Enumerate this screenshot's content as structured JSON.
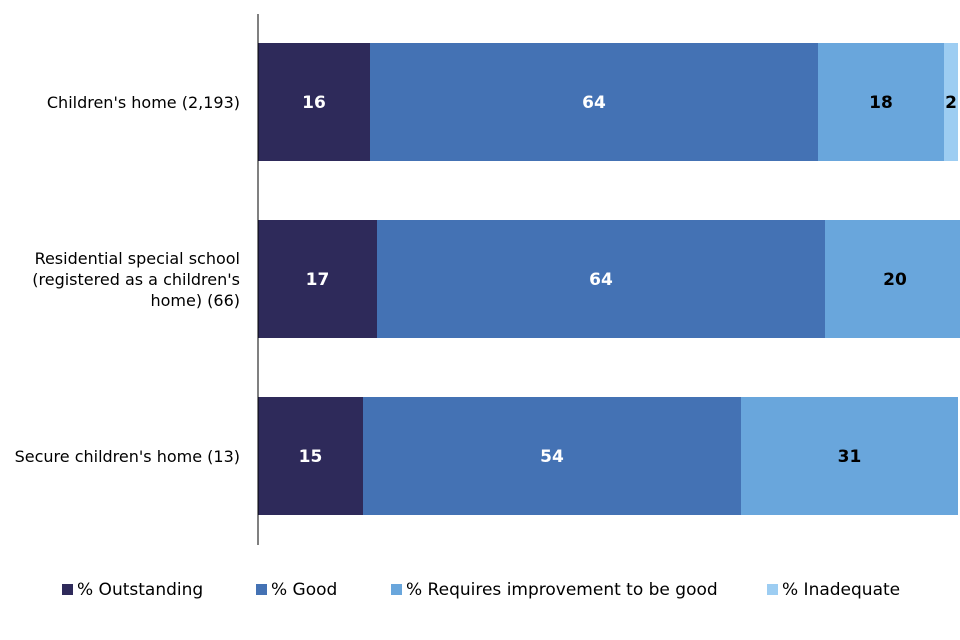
{
  "chart_data": {
    "type": "bar",
    "orientation": "horizontal",
    "stacked": true,
    "xlim": [
      0,
      100
    ],
    "grid": false,
    "legend_position": "bottom",
    "categories": [
      "Children's home (2,193)",
      "Residential special school (registered as a children's home) (66)",
      "Secure children's home (13)"
    ],
    "category_lines": [
      [
        "Children's home (2,193)"
      ],
      [
        "Residential special school",
        "(registered as a children's",
        "home) (66)"
      ],
      [
        "Secure children's home (13)"
      ]
    ],
    "series": [
      {
        "name": "% Outstanding",
        "color": "#2e2a5a",
        "label_color": "#ffffff",
        "values": [
          16,
          17,
          15
        ]
      },
      {
        "name": "% Good",
        "color": "#4472b4",
        "label_color": "#ffffff",
        "values": [
          64,
          64,
          54
        ]
      },
      {
        "name": "% Requires improvement to be good",
        "color": "#69a6dc",
        "label_color": "#000000",
        "values": [
          18,
          20,
          31
        ]
      },
      {
        "name": "% Inadequate",
        "color": "#9dcdf2",
        "label_color": "#000000",
        "values": [
          2,
          0,
          0
        ]
      }
    ]
  }
}
